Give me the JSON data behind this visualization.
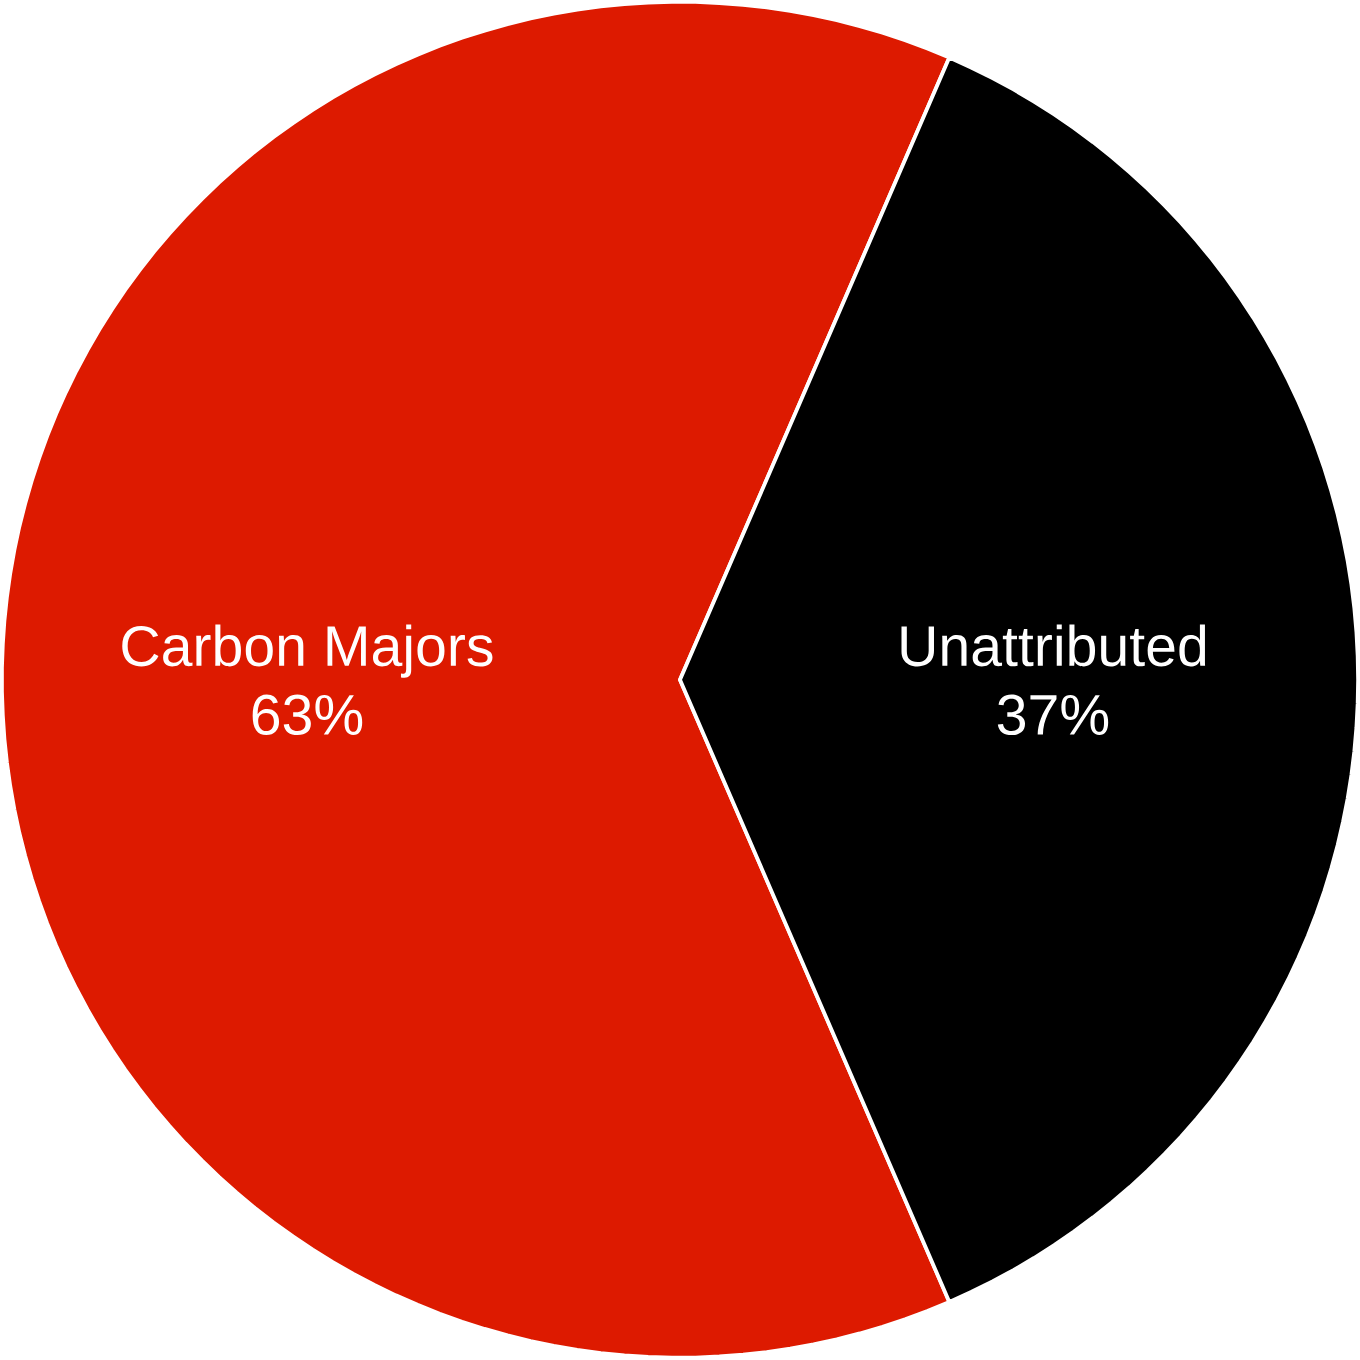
{
  "chart_data": {
    "type": "pie",
    "categories": [
      "Carbon Majors",
      "Unattributed"
    ],
    "values": [
      63,
      37
    ],
    "colors": [
      "#dd1a00",
      "#000000"
    ],
    "value_labels": [
      "63%",
      "37%"
    ]
  }
}
